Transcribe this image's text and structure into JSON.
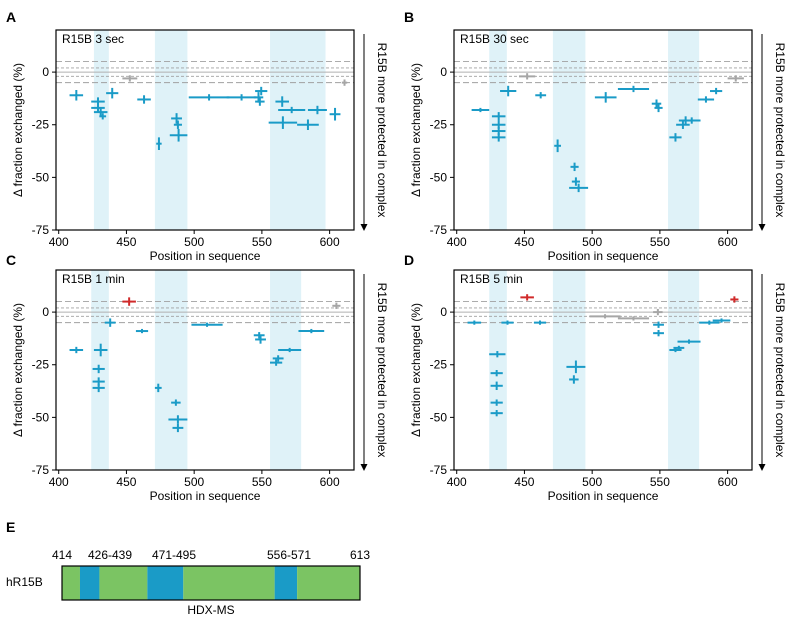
{
  "panel_letters": [
    "A",
    "B",
    "C",
    "D",
    "E"
  ],
  "colors": {
    "protected": "#1a9bc7",
    "deprotected": "#d02a2a",
    "insignificant": "#a6a6a6",
    "highlight": "#dff2f8",
    "domain_green": "#7bc463",
    "domain_blue": "#1a9bc7"
  },
  "highlight_regions": [
    [
      426,
      439
    ],
    [
      471,
      495
    ],
    [
      556,
      571
    ]
  ],
  "chart_data": [
    {
      "type": "scatter",
      "title": "R15B 3 sec",
      "xlabel": "Position in sequence",
      "ylabel": "Δ fraction exchanged (%)",
      "side_label": "R15B more protected in complex",
      "xlim": [
        398,
        618
      ],
      "ylim": [
        -75,
        20
      ],
      "xticks": [
        400,
        450,
        500,
        550,
        600
      ],
      "yticks": [
        0,
        -25,
        -50,
        -75
      ],
      "threshold_lines": [
        2,
        -2,
        5,
        -5
      ],
      "highlights": [
        [
          426,
          437
        ],
        [
          471,
          495
        ],
        [
          556,
          597
        ]
      ],
      "peptides": [
        {
          "x1": 408,
          "x2": 418,
          "y": -11,
          "err": 2.5,
          "color": "#1a9bc7"
        },
        {
          "x1": 424,
          "x2": 434,
          "y": -14,
          "err": 2,
          "color": "#1a9bc7"
        },
        {
          "x1": 424,
          "x2": 434,
          "y": -17,
          "err": 2,
          "color": "#1a9bc7"
        },
        {
          "x1": 426,
          "x2": 436,
          "y": -19,
          "err": 2,
          "color": "#1a9bc7"
        },
        {
          "x1": 430,
          "x2": 435,
          "y": -21,
          "err": 1.5,
          "color": "#1a9bc7"
        },
        {
          "x1": 435,
          "x2": 444,
          "y": -10,
          "err": 2.5,
          "color": "#1a9bc7"
        },
        {
          "x1": 447,
          "x2": 458,
          "y": -3,
          "err": 1.5,
          "color": "#a6a6a6"
        },
        {
          "x1": 458,
          "x2": 468,
          "y": -13,
          "err": 2,
          "color": "#1a9bc7"
        },
        {
          "x1": 472,
          "x2": 476,
          "y": -34,
          "err": 3,
          "color": "#1a9bc7"
        },
        {
          "x1": 483,
          "x2": 491,
          "y": -22,
          "err": 2.5,
          "color": "#1a9bc7"
        },
        {
          "x1": 485,
          "x2": 491,
          "y": -25,
          "err": 2,
          "color": "#1a9bc7"
        },
        {
          "x1": 482,
          "x2": 495,
          "y": -30,
          "err": 3,
          "color": "#1a9bc7"
        },
        {
          "x1": 496,
          "x2": 526,
          "y": -12,
          "err": 1.5,
          "color": "#1a9bc7"
        },
        {
          "x1": 524,
          "x2": 546,
          "y": -12,
          "err": 1.5,
          "color": "#1a9bc7"
        },
        {
          "x1": 545,
          "x2": 554,
          "y": -9,
          "err": 2,
          "color": "#1a9bc7"
        },
        {
          "x1": 544,
          "x2": 551,
          "y": -12,
          "err": 2.5,
          "color": "#1a9bc7"
        },
        {
          "x1": 545,
          "x2": 552,
          "y": -14,
          "err": 2,
          "color": "#1a9bc7"
        },
        {
          "x1": 555,
          "x2": 576,
          "y": -24,
          "err": 3,
          "color": "#1a9bc7"
        },
        {
          "x1": 560,
          "x2": 570,
          "y": -14,
          "err": 2.5,
          "color": "#1a9bc7"
        },
        {
          "x1": 562,
          "x2": 582,
          "y": -18,
          "err": 1.5,
          "color": "#1a9bc7"
        },
        {
          "x1": 576,
          "x2": 592,
          "y": -25,
          "err": 2.5,
          "color": "#1a9bc7"
        },
        {
          "x1": 584,
          "x2": 598,
          "y": -18,
          "err": 2,
          "color": "#1a9bc7"
        },
        {
          "x1": 600,
          "x2": 608,
          "y": -20,
          "err": 3,
          "color": "#1a9bc7"
        },
        {
          "x1": 609,
          "x2": 613,
          "y": -5,
          "err": 1.5,
          "color": "#a6a6a6"
        }
      ]
    },
    {
      "type": "scatter",
      "title": "R15B 30 sec",
      "xlabel": "Position in sequence",
      "ylabel": "Δ fraction exchanged (%)",
      "side_label": "R15B more protected in complex",
      "xlim": [
        398,
        618
      ],
      "ylim": [
        -75,
        20
      ],
      "xticks": [
        400,
        450,
        500,
        550,
        600
      ],
      "yticks": [
        0,
        -25,
        -50,
        -75
      ],
      "threshold_lines": [
        2,
        -2,
        5,
        -5
      ],
      "highlights": [
        [
          424,
          437
        ],
        [
          471,
          495
        ],
        [
          556,
          579
        ]
      ],
      "peptides": [
        {
          "x1": 411,
          "x2": 424,
          "y": -18,
          "err": 1,
          "color": "#1a9bc7"
        },
        {
          "x1": 426,
          "x2": 436,
          "y": -21,
          "err": 2,
          "color": "#1a9bc7"
        },
        {
          "x1": 426,
          "x2": 436,
          "y": -25,
          "err": 2,
          "color": "#1a9bc7"
        },
        {
          "x1": 426,
          "x2": 436,
          "y": -28,
          "err": 2,
          "color": "#1a9bc7"
        },
        {
          "x1": 426,
          "x2": 436,
          "y": -31,
          "err": 2,
          "color": "#1a9bc7"
        },
        {
          "x1": 432,
          "x2": 444,
          "y": -9,
          "err": 2.5,
          "color": "#1a9bc7"
        },
        {
          "x1": 446,
          "x2": 458,
          "y": -2,
          "err": 1.5,
          "color": "#a6a6a6"
        },
        {
          "x1": 458,
          "x2": 466,
          "y": -11,
          "err": 1.5,
          "color": "#1a9bc7"
        },
        {
          "x1": 472,
          "x2": 477,
          "y": -35,
          "err": 3,
          "color": "#1a9bc7"
        },
        {
          "x1": 484,
          "x2": 490,
          "y": -45,
          "err": 2,
          "color": "#1a9bc7"
        },
        {
          "x1": 485,
          "x2": 491,
          "y": -52,
          "err": 2,
          "color": "#1a9bc7"
        },
        {
          "x1": 483,
          "x2": 497,
          "y": -55,
          "err": 2,
          "color": "#1a9bc7"
        },
        {
          "x1": 502,
          "x2": 518,
          "y": -12,
          "err": 2.5,
          "color": "#1a9bc7"
        },
        {
          "x1": 519,
          "x2": 542,
          "y": -8,
          "err": 1.5,
          "color": "#1a9bc7"
        },
        {
          "x1": 544,
          "x2": 551,
          "y": -15,
          "err": 2,
          "color": "#1a9bc7"
        },
        {
          "x1": 546,
          "x2": 552,
          "y": -17,
          "err": 2,
          "color": "#1a9bc7"
        },
        {
          "x1": 557,
          "x2": 566,
          "y": -31,
          "err": 2,
          "color": "#1a9bc7"
        },
        {
          "x1": 562,
          "x2": 572,
          "y": -25,
          "err": 2,
          "color": "#1a9bc7"
        },
        {
          "x1": 564,
          "x2": 574,
          "y": -23,
          "err": 2,
          "color": "#1a9bc7"
        },
        {
          "x1": 567,
          "x2": 580,
          "y": -23,
          "err": 1.5,
          "color": "#1a9bc7"
        },
        {
          "x1": 578,
          "x2": 590,
          "y": -13,
          "err": 1.5,
          "color": "#1a9bc7"
        },
        {
          "x1": 587,
          "x2": 596,
          "y": -9,
          "err": 1.5,
          "color": "#1a9bc7"
        },
        {
          "x1": 600,
          "x2": 612,
          "y": -3,
          "err": 1.5,
          "color": "#a6a6a6"
        }
      ]
    },
    {
      "type": "scatter",
      "title": "R15B 1 min",
      "xlabel": "Position in sequence",
      "ylabel": "Δ fraction exchanged (%)",
      "side_label": "R15B more protected in complex",
      "xlim": [
        398,
        618
      ],
      "ylim": [
        -75,
        20
      ],
      "xticks": [
        400,
        450,
        500,
        550,
        600
      ],
      "yticks": [
        0,
        -25,
        -50,
        -75
      ],
      "threshold_lines": [
        2,
        -2,
        5,
        -5
      ],
      "highlights": [
        [
          424,
          437
        ],
        [
          471,
          495
        ],
        [
          556,
          579
        ]
      ],
      "peptides": [
        {
          "x1": 408,
          "x2": 418,
          "y": -18,
          "err": 1.5,
          "color": "#1a9bc7"
        },
        {
          "x1": 426,
          "x2": 436,
          "y": -18,
          "err": 3,
          "color": "#1a9bc7"
        },
        {
          "x1": 425,
          "x2": 434,
          "y": -27,
          "err": 2,
          "color": "#1a9bc7"
        },
        {
          "x1": 425,
          "x2": 434,
          "y": -33,
          "err": 2,
          "color": "#1a9bc7"
        },
        {
          "x1": 425,
          "x2": 434,
          "y": -36,
          "err": 2,
          "color": "#1a9bc7"
        },
        {
          "x1": 434,
          "x2": 442,
          "y": -5,
          "err": 2,
          "color": "#1a9bc7"
        },
        {
          "x1": 447,
          "x2": 457,
          "y": 5,
          "err": 2,
          "color": "#d02a2a"
        },
        {
          "x1": 457,
          "x2": 466,
          "y": -9,
          "err": 1,
          "color": "#1a9bc7"
        },
        {
          "x1": 471,
          "x2": 476,
          "y": -36,
          "err": 2,
          "color": "#1a9bc7"
        },
        {
          "x1": 483,
          "x2": 490,
          "y": -43,
          "err": 1.5,
          "color": "#1a9bc7"
        },
        {
          "x1": 484,
          "x2": 492,
          "y": -55,
          "err": 2,
          "color": "#1a9bc7"
        },
        {
          "x1": 481,
          "x2": 495,
          "y": -51,
          "err": 2,
          "color": "#1a9bc7"
        },
        {
          "x1": 498,
          "x2": 521,
          "y": -6,
          "err": 1,
          "color": "#1a9bc7"
        },
        {
          "x1": 544,
          "x2": 552,
          "y": -11,
          "err": 1.5,
          "color": "#1a9bc7"
        },
        {
          "x1": 545,
          "x2": 553,
          "y": -13,
          "err": 2,
          "color": "#1a9bc7"
        },
        {
          "x1": 556,
          "x2": 565,
          "y": -24,
          "err": 1.5,
          "color": "#1a9bc7"
        },
        {
          "x1": 558,
          "x2": 566,
          "y": -22,
          "err": 1.5,
          "color": "#1a9bc7"
        },
        {
          "x1": 562,
          "x2": 579,
          "y": -18,
          "err": 1,
          "color": "#1a9bc7"
        },
        {
          "x1": 577,
          "x2": 596,
          "y": -9,
          "err": 1,
          "color": "#1a9bc7"
        },
        {
          "x1": 602,
          "x2": 608,
          "y": 3,
          "err": 1.5,
          "color": "#a6a6a6"
        }
      ]
    },
    {
      "type": "scatter",
      "title": "R15B 5 min",
      "xlabel": "Position in sequence",
      "ylabel": "Δ fraction exchanged (%)",
      "side_label": "R15B more protected in complex",
      "xlim": [
        398,
        618
      ],
      "ylim": [
        -75,
        20
      ],
      "xticks": [
        400,
        450,
        500,
        550,
        600
      ],
      "yticks": [
        0,
        -25,
        -50,
        -75
      ],
      "threshold_lines": [
        2,
        -2,
        5,
        -5
      ],
      "highlights": [
        [
          424,
          437
        ],
        [
          471,
          495
        ],
        [
          556,
          579
        ]
      ],
      "peptides": [
        {
          "x1": 408,
          "x2": 418,
          "y": -5,
          "err": 1,
          "color": "#1a9bc7"
        },
        {
          "x1": 424,
          "x2": 436,
          "y": -20,
          "err": 1.5,
          "color": "#1a9bc7"
        },
        {
          "x1": 425,
          "x2": 434,
          "y": -29,
          "err": 1.5,
          "color": "#1a9bc7"
        },
        {
          "x1": 425,
          "x2": 434,
          "y": -35,
          "err": 2,
          "color": "#1a9bc7"
        },
        {
          "x1": 425,
          "x2": 434,
          "y": -43,
          "err": 1.5,
          "color": "#1a9bc7"
        },
        {
          "x1": 425,
          "x2": 434,
          "y": -48,
          "err": 1.5,
          "color": "#1a9bc7"
        },
        {
          "x1": 433,
          "x2": 442,
          "y": -5,
          "err": 1,
          "color": "#1a9bc7"
        },
        {
          "x1": 447,
          "x2": 457,
          "y": 7,
          "err": 1.5,
          "color": "#d02a2a"
        },
        {
          "x1": 457,
          "x2": 466,
          "y": -5,
          "err": 1,
          "color": "#1a9bc7"
        },
        {
          "x1": 483,
          "x2": 490,
          "y": -32,
          "err": 2,
          "color": "#1a9bc7"
        },
        {
          "x1": 481,
          "x2": 495,
          "y": -26,
          "err": 3,
          "color": "#1a9bc7"
        },
        {
          "x1": 498,
          "x2": 521,
          "y": -2,
          "err": 1,
          "color": "#a6a6a6"
        },
        {
          "x1": 519,
          "x2": 542,
          "y": -3,
          "err": 1,
          "color": "#a6a6a6"
        },
        {
          "x1": 545,
          "x2": 552,
          "y": 0,
          "err": 1.5,
          "color": "#a6a6a6"
        },
        {
          "x1": 545,
          "x2": 553,
          "y": -6,
          "err": 1.5,
          "color": "#1a9bc7"
        },
        {
          "x1": 545,
          "x2": 553,
          "y": -10,
          "err": 1.5,
          "color": "#1a9bc7"
        },
        {
          "x1": 557,
          "x2": 566,
          "y": -18,
          "err": 1,
          "color": "#1a9bc7"
        },
        {
          "x1": 560,
          "x2": 568,
          "y": -17,
          "err": 1,
          "color": "#1a9bc7"
        },
        {
          "x1": 563,
          "x2": 580,
          "y": -14,
          "err": 1,
          "color": "#1a9bc7"
        },
        {
          "x1": 579,
          "x2": 594,
          "y": -5,
          "err": 1,
          "color": "#1a9bc7"
        },
        {
          "x1": 589,
          "x2": 602,
          "y": -4,
          "err": 1,
          "color": "#1a9bc7"
        },
        {
          "x1": 602,
          "x2": 608,
          "y": 6,
          "err": 1.5,
          "color": "#d02a2a"
        }
      ]
    }
  ],
  "domain_diagram": {
    "row_label": "hR15B",
    "caption": "HDX-MS",
    "start": 414,
    "end": 613,
    "boundary_labels": [
      "414",
      "426-439",
      "471-495",
      "556-571",
      "613"
    ],
    "segments": [
      {
        "start": 414,
        "end": 426,
        "color": "#7bc463"
      },
      {
        "start": 426,
        "end": 439,
        "color": "#1a9bc7"
      },
      {
        "start": 439,
        "end": 471,
        "color": "#7bc463"
      },
      {
        "start": 471,
        "end": 495,
        "color": "#1a9bc7"
      },
      {
        "start": 495,
        "end": 556,
        "color": "#7bc463"
      },
      {
        "start": 556,
        "end": 571,
        "color": "#1a9bc7"
      },
      {
        "start": 571,
        "end": 613,
        "color": "#7bc463"
      }
    ]
  }
}
